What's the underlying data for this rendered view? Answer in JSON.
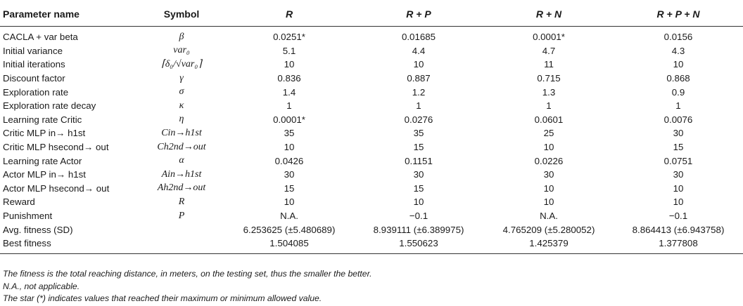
{
  "table": {
    "headers": [
      "Parameter name",
      "Symbol",
      "R",
      "R + P",
      "R + N",
      "R + P + N"
    ],
    "rows": [
      {
        "name": "CACLA + var beta",
        "symbol": "β",
        "values": [
          "0.0251*",
          "0.01685",
          "0.0001*",
          "0.0156"
        ]
      },
      {
        "name": "Initial variance",
        "symbol": "var₀",
        "values": [
          "5.1",
          "4.4",
          "4.7",
          "4.3"
        ]
      },
      {
        "name": "Initial iterations",
        "symbol": "⌈δ₀/√var₀⌉",
        "values": [
          "10",
          "10",
          "11",
          "10"
        ]
      },
      {
        "name": "Discount factor",
        "symbol": "γ",
        "values": [
          "0.836",
          "0.887",
          "0.715",
          "0.868"
        ]
      },
      {
        "name": "Exploration rate",
        "symbol": "σ",
        "values": [
          "1.4",
          "1.2",
          "1.3",
          "0.9"
        ]
      },
      {
        "name": "Exploration rate decay",
        "symbol": "κ",
        "values": [
          "1",
          "1",
          "1",
          "1"
        ]
      },
      {
        "name": "Learning rate Critic",
        "symbol": "η",
        "values": [
          "0.0001*",
          "0.0276",
          "0.0601",
          "0.0076"
        ]
      },
      {
        "name": "Critic MLP in→ h1st",
        "symbol": "Cin→h1st",
        "values": [
          "35",
          "35",
          "25",
          "30"
        ]
      },
      {
        "name": "Critic MLP hsecond→ out",
        "symbol": "Ch2nd→out",
        "values": [
          "10",
          "15",
          "10",
          "15"
        ]
      },
      {
        "name": "Learning rate Actor",
        "symbol": "α",
        "values": [
          "0.0426",
          "0.1151",
          "0.0226",
          "0.0751"
        ]
      },
      {
        "name": "Actor MLP in→ h1st",
        "symbol": "Ain→h1st",
        "values": [
          "30",
          "30",
          "30",
          "30"
        ]
      },
      {
        "name": "Actor MLP hsecond→ out",
        "symbol": "Ah2nd→out",
        "values": [
          "15",
          "15",
          "10",
          "10"
        ]
      },
      {
        "name": "Reward",
        "symbol": "R",
        "values": [
          "10",
          "10",
          "10",
          "10"
        ]
      },
      {
        "name": "Punishment",
        "symbol": "P",
        "values": [
          "N.A.",
          "−0.1",
          "N.A.",
          "−0.1"
        ]
      },
      {
        "name": "Avg. fitness (SD)",
        "symbol": "",
        "values": [
          "6.253625 (±5.480689)",
          "8.939111 (±6.389975)",
          "4.765209 (±5.280052)",
          "8.864413 (±6.943758)"
        ]
      },
      {
        "name": "Best fitness",
        "symbol": "",
        "values": [
          "1.504085",
          "1.550623",
          "1.425379",
          "1.377808"
        ]
      }
    ]
  },
  "notes": [
    "The fitness is the total reaching distance, in meters, on the testing set, thus the smaller the better.",
    "N.A., not applicable.",
    "The star (*) indicates values that reached their maximum or minimum allowed value."
  ]
}
